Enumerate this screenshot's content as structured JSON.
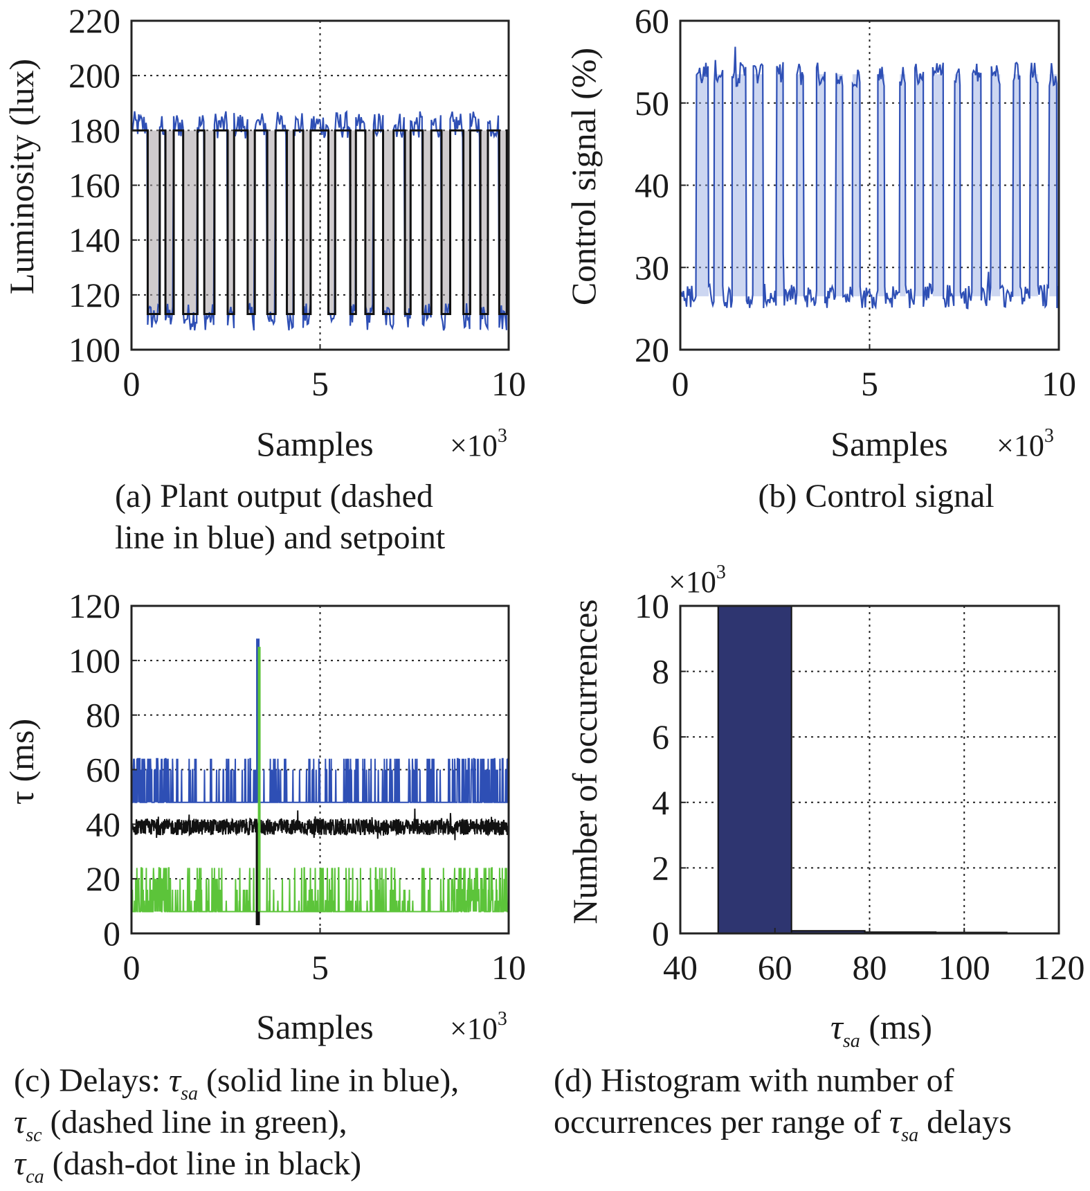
{
  "chart_data": [
    {
      "panel": "a",
      "type": "line",
      "caption_lines": [
        "(a) Plant output (dashed",
        "line in blue) and setpoint"
      ],
      "xlabel": "Samples",
      "x_multiplier": "×10",
      "x_multiplier_exp": "3",
      "ylabel": "Luminosity (lux)",
      "xlim": [
        0,
        10
      ],
      "ylim": [
        100,
        220
      ],
      "xticks": [
        "0",
        "5",
        "10"
      ],
      "yticks": [
        "100",
        "120",
        "140",
        "160",
        "180",
        "200",
        "220"
      ],
      "grid": true,
      "setpoint": {
        "levels": [
          113,
          180
        ],
        "switch_x": [
          0.0,
          0.43,
          0.75,
          0.9,
          1.12,
          1.37,
          1.75,
          1.93,
          2.2,
          2.55,
          2.72,
          3.08,
          3.27,
          3.6,
          3.82,
          4.12,
          4.3,
          4.55,
          4.75,
          5.22,
          5.4,
          5.8,
          5.95,
          6.2,
          6.42,
          6.67,
          6.95,
          7.25,
          7.4,
          7.72,
          7.95,
          8.22,
          8.45,
          8.8,
          8.98,
          9.25,
          9.45,
          9.75,
          9.95,
          10.0
        ]
      },
      "output_noise_lux": 5,
      "colors": {
        "output": "#2e4fb5",
        "setpoint": "#111111",
        "fill": "#a8a0a4"
      }
    },
    {
      "panel": "b",
      "type": "line",
      "caption_lines": [
        "(b) Control signal"
      ],
      "xlabel": "Samples",
      "x_multiplier": "×10",
      "x_multiplier_exp": "3",
      "ylabel": "Control signal (%)",
      "xlim": [
        0,
        10
      ],
      "ylim": [
        20,
        60
      ],
      "xticks": [
        "0",
        "5",
        "10"
      ],
      "yticks": [
        "20",
        "30",
        "40",
        "50",
        "60"
      ],
      "grid": true,
      "levels": {
        "low": 26.5,
        "high": 53.5
      },
      "noise_pct": 1.5,
      "colors": {
        "line": "#2e4fb5",
        "fill": "#8ea3e0"
      }
    },
    {
      "panel": "c",
      "type": "line",
      "caption_lines": [
        "(c) Delays: ",
        "τ",
        "sa",
        " (solid line in blue),",
        "τ",
        "sc",
        " (dashed line in green),",
        "τ",
        "ca",
        " (dash-dot line in black)"
      ],
      "xlabel": "Samples",
      "x_multiplier": "×10",
      "x_multiplier_exp": "3",
      "ylabel": "τ (ms)",
      "xlim": [
        0,
        10
      ],
      "ylim": [
        0,
        120
      ],
      "xticks": [
        "0",
        "5",
        "10"
      ],
      "yticks": [
        "0",
        "20",
        "40",
        "60",
        "80",
        "100",
        "120"
      ],
      "grid": true,
      "series": [
        {
          "name": "τsa",
          "base": 48,
          "spike_levels": [
            60,
            64
          ],
          "color": "#2e4fb5"
        },
        {
          "name": "τsc",
          "base": 8,
          "spike_levels": [
            12,
            16,
            20,
            24
          ],
          "color": "#5cc43a"
        },
        {
          "name": "τca",
          "base": 39,
          "spread": 3,
          "color": "#111111"
        }
      ],
      "peak": {
        "x": 3.35,
        "y_sa": 108,
        "y_sc": 105,
        "y_ca_low": 3
      }
    },
    {
      "panel": "d",
      "type": "bar",
      "caption_lines": [
        "(d) Histogram with number of",
        "occurrences per range of ",
        "τ",
        "sa",
        " delays"
      ],
      "xlabel": "τ",
      "xlabel_sub": "sa",
      "xlabel_unit": " (ms)",
      "ylabel": "Number of occurrences",
      "y_multiplier": "×10",
      "y_multiplier_exp": "3",
      "xlim": [
        40,
        120
      ],
      "ylim": [
        0,
        10
      ],
      "xticks": [
        "40",
        "60",
        "80",
        "100",
        "120"
      ],
      "yticks": [
        "0",
        "2",
        "4",
        "6",
        "8",
        "10"
      ],
      "grid": true,
      "bins": [
        {
          "from": 40,
          "to": 48,
          "value": 0
        },
        {
          "from": 48,
          "to": 63.5,
          "value": 10
        },
        {
          "from": 63.5,
          "to": 79,
          "value": 0.08
        },
        {
          "from": 79,
          "to": 94,
          "value": 0.04
        },
        {
          "from": 94,
          "to": 109,
          "value": 0.03
        },
        {
          "from": 109,
          "to": 120,
          "value": 0
        }
      ],
      "colors": {
        "bar": "#2e3570"
      }
    }
  ]
}
